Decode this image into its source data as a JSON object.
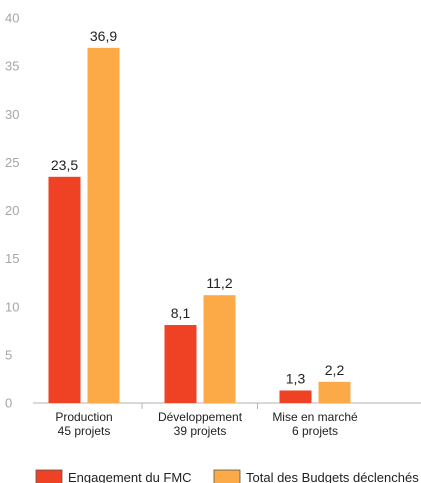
{
  "chart_data": {
    "type": "bar",
    "categories": [
      [
        "Production",
        "45 projets"
      ],
      [
        "Développement",
        "39 projets"
      ],
      [
        "Mise en marché",
        "6 projets"
      ]
    ],
    "series": [
      {
        "name": "Engagement du FMC",
        "values": [
          23.5,
          8.1,
          1.3
        ],
        "labels": [
          "23,5",
          "8,1",
          "1,3"
        ],
        "color": "#ef4123"
      },
      {
        "name": "Total des Budgets déclenchés",
        "values": [
          36.9,
          11.2,
          2.2
        ],
        "labels": [
          "36,9",
          "11,2",
          "2,2"
        ],
        "color": "#fbaa47"
      }
    ],
    "ylim": [
      0,
      40
    ],
    "yticks": [
      0,
      5,
      10,
      15,
      20,
      25,
      30,
      35,
      40
    ],
    "grid": false,
    "legend": "bottom"
  }
}
